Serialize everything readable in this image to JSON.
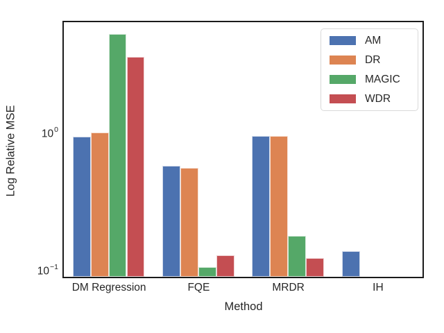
{
  "chart_data": {
    "type": "bar",
    "title": "",
    "xlabel": "Method",
    "ylabel": "Log Relative MSE",
    "categories": [
      "DM Regression",
      "FQE",
      "MRDR",
      "IH"
    ],
    "series": [
      {
        "name": "AM",
        "color": "#4c72b0",
        "values": [
          0.95,
          0.58,
          0.96,
          0.14
        ]
      },
      {
        "name": "DR",
        "color": "#dd8452",
        "values": [
          1.02,
          0.56,
          0.96,
          null
        ]
      },
      {
        "name": "MAGIC",
        "color": "#55a868",
        "values": [
          5.3,
          0.107,
          0.18,
          null
        ]
      },
      {
        "name": "WDR",
        "color": "#c44e52",
        "values": [
          3.6,
          0.13,
          0.125,
          null
        ]
      }
    ],
    "yscale": "log",
    "ylim": [
      0.091,
      6.44
    ],
    "yticks": [
      {
        "value": 1,
        "base": "10",
        "exp": "0"
      },
      {
        "value": 0.1,
        "base": "10",
        "exp": "−1"
      }
    ],
    "grid": false,
    "legend_position": "upper right",
    "spine_color": "#1a1a1a"
  }
}
